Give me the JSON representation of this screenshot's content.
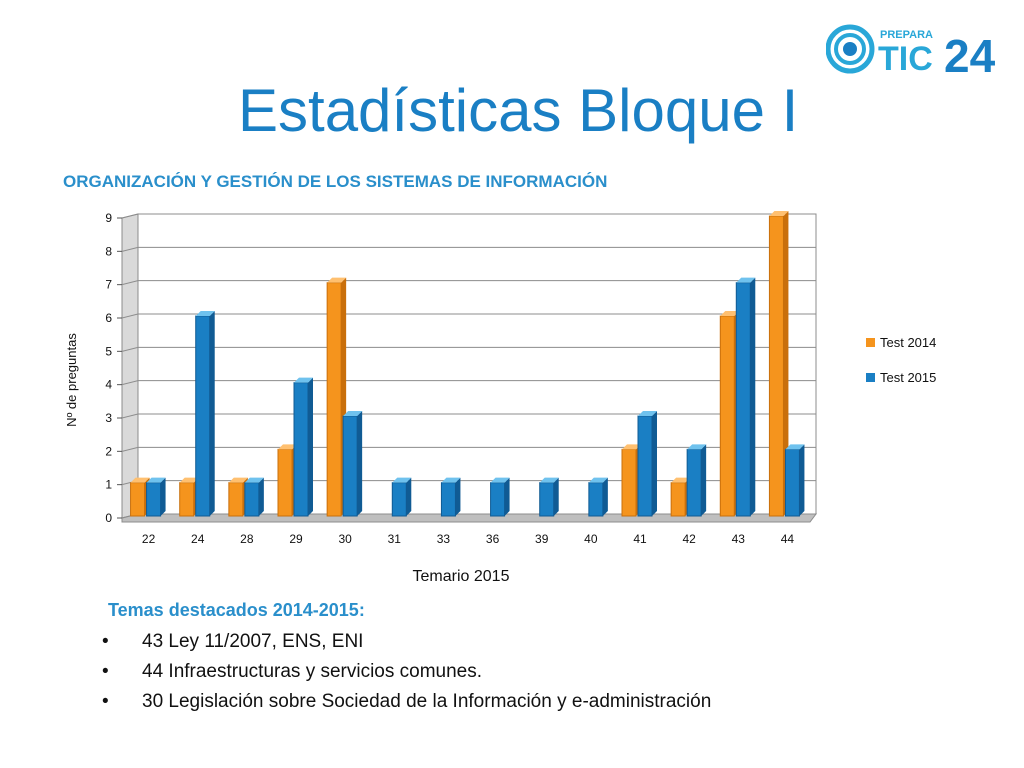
{
  "logo": {
    "small_text": "PREPARA",
    "big_text_a": "TIC",
    "big_text_b": "24"
  },
  "title": "Estadísticas Bloque I",
  "subtitle": "ORGANIZACIÓN Y GESTIÓN DE LOS SISTEMAS DE INFORMACIÓN",
  "colors": {
    "accent": "#1a7fc4",
    "series_2014": "#f5941d",
    "series_2015": "#1a7fc4"
  },
  "chart_data": {
    "type": "bar",
    "title": "",
    "xlabel": "Temario 2015",
    "ylabel": "Nº de preguntas",
    "ylim": [
      0,
      9
    ],
    "yticks": [
      0,
      1,
      2,
      3,
      4,
      5,
      6,
      7,
      8,
      9
    ],
    "categories": [
      "22",
      "24",
      "28",
      "29",
      "30",
      "31",
      "33",
      "36",
      "39",
      "40",
      "41",
      "42",
      "43",
      "44"
    ],
    "series": [
      {
        "name": "Test 2014",
        "values": [
          1,
          1,
          1,
          2,
          7,
          0,
          0,
          0,
          0,
          0,
          2,
          1,
          6,
          9
        ]
      },
      {
        "name": "Test 2015",
        "values": [
          1,
          6,
          1,
          4,
          3,
          1,
          1,
          1,
          1,
          1,
          3,
          2,
          7,
          2
        ]
      }
    ],
    "legend": "right",
    "grid": true
  },
  "notes": {
    "heading": "Temas destacados 2014-2015:",
    "bullet": "•",
    "items": [
      "43 Ley 11/2007, ENS, ENI",
      "44 Infraestructuras y servicios comunes.",
      "30 Legislación sobre Sociedad de la Información y e-administración"
    ]
  }
}
